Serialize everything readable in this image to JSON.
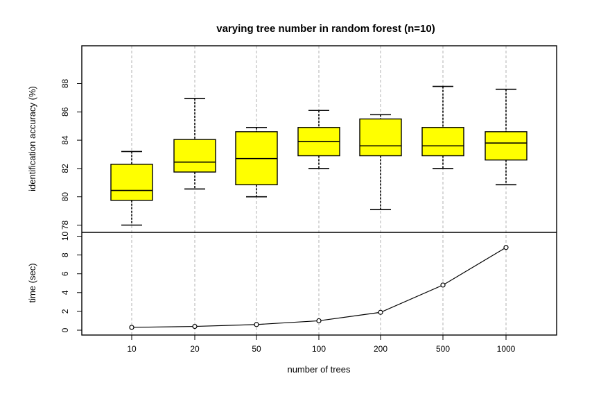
{
  "chart_data": {
    "title": "varying tree number in random forest (n=10)",
    "xlabel": "number of trees",
    "categories": [
      "10",
      "20",
      "50",
      "100",
      "200",
      "500",
      "1000"
    ],
    "grid": "vertical dashed lines at each category",
    "panels": [
      {
        "type": "box",
        "ylabel": "identification accuracy (%)",
        "ylim": [
          78,
          88
        ],
        "yticks": [
          "78",
          "80",
          "82",
          "84",
          "86",
          "88"
        ],
        "fill_color": "#ffff00",
        "boxes": [
          {
            "min": 78.0,
            "q1": 79.75,
            "median": 80.45,
            "q3": 82.3,
            "max": 83.2
          },
          {
            "min": 80.55,
            "q1": 81.75,
            "median": 82.45,
            "q3": 84.05,
            "max": 86.95
          },
          {
            "min": 80.0,
            "q1": 80.85,
            "median": 82.7,
            "q3": 84.6,
            "max": 84.9
          },
          {
            "min": 82.0,
            "q1": 82.9,
            "median": 83.9,
            "q3": 84.9,
            "max": 86.1
          },
          {
            "min": 79.1,
            "q1": 82.9,
            "median": 83.6,
            "q3": 85.5,
            "max": 85.8
          },
          {
            "min": 82.0,
            "q1": 82.9,
            "median": 83.6,
            "q3": 84.9,
            "max": 87.8
          },
          {
            "min": 80.85,
            "q1": 82.6,
            "median": 83.8,
            "q3": 84.6,
            "max": 87.6
          }
        ]
      },
      {
        "type": "line",
        "ylabel": "time (sec)",
        "ylim": [
          0,
          10
        ],
        "yticks": [
          "0",
          "2",
          "4",
          "6",
          "8",
          "10"
        ],
        "values": [
          0.3,
          0.4,
          0.6,
          1.0,
          1.9,
          4.8,
          8.8
        ]
      }
    ]
  }
}
